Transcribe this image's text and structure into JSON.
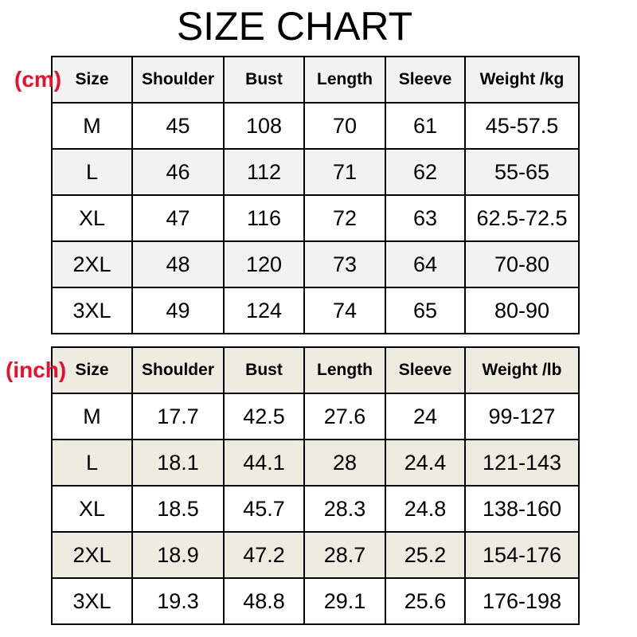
{
  "title": "SIZE CHART",
  "colors": {
    "unit_label": "#e8102a",
    "cm_shade": "#f2f2f2",
    "inch_shade": "#eeebe0"
  },
  "cm_table": {
    "unit": "(cm)",
    "headers": [
      "Size",
      "Shoulder",
      "Bust",
      "Length",
      "Sleeve",
      "Weight /kg"
    ],
    "rows": [
      [
        "M",
        "45",
        "108",
        "70",
        "61",
        "45-57.5"
      ],
      [
        "L",
        "46",
        "112",
        "71",
        "62",
        "55-65"
      ],
      [
        "XL",
        "47",
        "116",
        "72",
        "63",
        "62.5-72.5"
      ],
      [
        "2XL",
        "48",
        "120",
        "73",
        "64",
        "70-80"
      ],
      [
        "3XL",
        "49",
        "124",
        "74",
        "65",
        "80-90"
      ]
    ]
  },
  "inch_table": {
    "unit": "(inch)",
    "headers": [
      "Size",
      "Shoulder",
      "Bust",
      "Length",
      "Sleeve",
      "Weight /lb"
    ],
    "rows": [
      [
        "M",
        "17.7",
        "42.5",
        "27.6",
        "24",
        "99-127"
      ],
      [
        "L",
        "18.1",
        "44.1",
        "28",
        "24.4",
        "121-143"
      ],
      [
        "XL",
        "18.5",
        "45.7",
        "28.3",
        "24.8",
        "138-160"
      ],
      [
        "2XL",
        "18.9",
        "47.2",
        "28.7",
        "25.2",
        "154-176"
      ],
      [
        "3XL",
        "19.3",
        "48.8",
        "29.1",
        "25.6",
        "176-198"
      ]
    ]
  }
}
